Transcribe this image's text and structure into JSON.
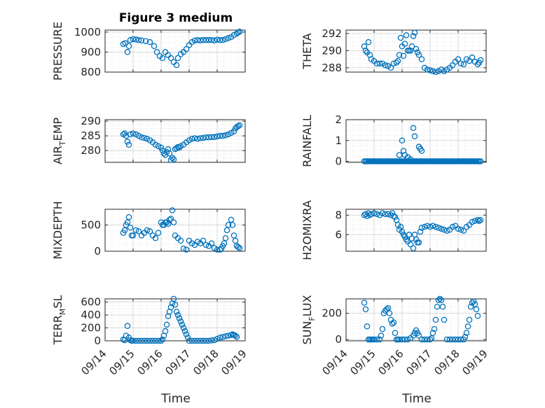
{
  "title": "Figure 3 medium",
  "xlabel": "Time",
  "colors": {
    "marker": "#0072BD",
    "axis": "#262626",
    "grid": "#d0d0d0"
  },
  "chart_data": [
    {
      "type": "scatter",
      "ylabel": "PRESSURE",
      "yticks": [
        "800",
        "900",
        "1000"
      ],
      "ytick_values": [
        800,
        900,
        1000
      ],
      "ylim": [
        800,
        1010
      ],
      "xlim": [
        0,
        5
      ],
      "grid": true,
      "minor_grid": true,
      "x": [
        0.65,
        0.72,
        0.8,
        0.85,
        0.9,
        1.0,
        1.1,
        1.2,
        1.3,
        1.45,
        1.6,
        1.75,
        1.85,
        1.95,
        2.05,
        2.15,
        2.25,
        2.35,
        2.45,
        2.55,
        2.6,
        2.7,
        2.8,
        2.9,
        3.0,
        3.1,
        3.2,
        3.3,
        3.4,
        3.5,
        3.6,
        3.7,
        3.8,
        3.9,
        4.0,
        4.1,
        4.2,
        4.3,
        4.4,
        4.5,
        4.6,
        4.7,
        4.75,
        4.8
      ],
      "y": [
        940,
        945,
        900,
        930,
        960,
        965,
        963,
        960,
        958,
        955,
        950,
        930,
        900,
        880,
        870,
        900,
        885,
        870,
        850,
        835,
        870,
        890,
        900,
        915,
        935,
        950,
        958,
        960,
        958,
        960,
        960,
        960,
        960,
        958,
        962,
        960,
        960,
        965,
        970,
        975,
        985,
        993,
        998,
        1002
      ]
    },
    {
      "type": "scatter",
      "ylabel": "THETA",
      "yticks": [
        "288",
        "290",
        "292"
      ],
      "ytick_values": [
        288,
        290,
        292
      ],
      "ylim": [
        287.5,
        292.4
      ],
      "xlim": [
        0,
        5
      ],
      "grid": true,
      "minor_grid": true,
      "x": [
        0.65,
        0.7,
        0.75,
        0.8,
        0.85,
        0.9,
        1.0,
        1.1,
        1.2,
        1.3,
        1.4,
        1.5,
        1.6,
        1.7,
        1.8,
        1.85,
        1.9,
        1.95,
        2.0,
        2.05,
        2.1,
        2.15,
        2.2,
        2.25,
        2.3,
        2.35,
        2.4,
        2.45,
        2.5,
        2.55,
        2.6,
        2.7,
        2.8,
        2.9,
        3.0,
        3.1,
        3.2,
        3.3,
        3.4,
        3.5,
        3.6,
        3.7,
        3.8,
        3.9,
        4.0,
        4.1,
        4.2,
        4.3,
        4.4,
        4.5,
        4.6,
        4.7,
        4.75,
        4.8
      ],
      "y": [
        290.5,
        290,
        289.8,
        291,
        289.5,
        289,
        288.8,
        288.5,
        288.5,
        288.5,
        288.3,
        288.2,
        288,
        288.5,
        288.6,
        288.8,
        289.5,
        291.5,
        290.5,
        289.4,
        290.8,
        291.8,
        290,
        290,
        290,
        290.5,
        291.7,
        292.1,
        290.2,
        289.8,
        289.5,
        289,
        288,
        287.8,
        287.7,
        287.6,
        287.5,
        287.6,
        287.8,
        287.6,
        287.8,
        288,
        288.3,
        288.7,
        289,
        288.5,
        288.4,
        289,
        288.8,
        289.2,
        288.7,
        288.4,
        288.6,
        288.9
      ]
    },
    {
      "type": "scatter",
      "ylabel": "AIR_TEMP",
      "ylabel_main": "AIR",
      "ylabel_sub": "T",
      "ylabel_rest": "EMP",
      "yticks": [
        "280",
        "285",
        "290"
      ],
      "ytick_values": [
        280,
        285,
        290
      ],
      "ylim": [
        276,
        290.5
      ],
      "xlim": [
        0,
        5
      ],
      "grid": true,
      "minor_grid": true,
      "x": [
        0.65,
        0.7,
        0.75,
        0.8,
        0.85,
        0.9,
        1.0,
        1.1,
        1.2,
        1.3,
        1.4,
        1.5,
        1.6,
        1.7,
        1.8,
        1.9,
        2.0,
        2.05,
        2.1,
        2.15,
        2.2,
        2.25,
        2.3,
        2.35,
        2.4,
        2.45,
        2.5,
        2.55,
        2.6,
        2.65,
        2.7,
        2.8,
        2.9,
        3.0,
        3.1,
        3.2,
        3.3,
        3.4,
        3.5,
        3.6,
        3.7,
        3.8,
        3.9,
        4.0,
        4.1,
        4.2,
        4.3,
        4.4,
        4.5,
        4.6,
        4.65,
        4.7,
        4.75,
        4.8
      ],
      "y": [
        285.5,
        285.8,
        285,
        283,
        282,
        285.5,
        285.8,
        285.5,
        285,
        284.5,
        284.3,
        284,
        283.5,
        282.8,
        282,
        281.5,
        281,
        280,
        279,
        278.5,
        279.5,
        280.5,
        279,
        276.8,
        277.5,
        277,
        280.5,
        280.8,
        281.2,
        281,
        281.5,
        282,
        282.8,
        283.5,
        284,
        284.2,
        284,
        284.2,
        284.3,
        284.5,
        284.5,
        284.6,
        284.6,
        284.8,
        285,
        285,
        285.2,
        285.5,
        286,
        286.5,
        287.5,
        288,
        288.3,
        288.6
      ]
    },
    {
      "type": "scatter",
      "ylabel": "RAINFALL",
      "yticks": [
        "0",
        "1",
        "2"
      ],
      "ytick_values": [
        0,
        1,
        2
      ],
      "ylim": [
        -0.05,
        2
      ],
      "xlim": [
        0,
        5
      ],
      "grid": true,
      "minor_grid": true,
      "x": [
        0.65,
        0.7,
        0.75,
        0.8,
        0.85,
        0.9,
        0.95,
        1.0,
        1.05,
        1.1,
        1.15,
        1.2,
        1.25,
        1.3,
        1.35,
        1.4,
        1.45,
        1.5,
        1.55,
        1.6,
        1.65,
        1.7,
        1.75,
        1.8,
        1.85,
        1.9,
        1.95,
        2.0,
        2.05,
        2.1,
        2.15,
        2.2,
        2.25,
        2.3,
        2.35,
        2.4,
        2.45,
        2.5,
        2.55,
        2.6,
        2.65,
        2.7,
        2.75,
        2.8,
        2.85,
        2.9,
        2.95,
        3.0,
        3.05,
        3.1,
        3.15,
        3.2,
        3.25,
        3.3,
        3.35,
        3.4,
        3.45,
        3.5,
        3.55,
        3.6,
        3.65,
        3.7,
        3.75,
        3.8,
        3.85,
        3.9,
        3.95,
        4.0,
        4.05,
        4.1,
        4.15,
        4.2,
        4.25,
        4.3,
        4.35,
        4.4,
        4.45,
        4.5,
        4.55,
        4.6,
        4.65,
        4.7,
        4.75,
        4.8,
        1.9,
        2.0,
        2.05,
        2.1,
        2.2,
        2.3,
        2.4,
        2.45,
        2.6,
        2.65,
        2.7
      ],
      "y": [
        0,
        0,
        0,
        0,
        0,
        0,
        0,
        0,
        0,
        0,
        0,
        0,
        0,
        0,
        0,
        0,
        0,
        0,
        0,
        0,
        0,
        0,
        0,
        0,
        0,
        0,
        0,
        0,
        0,
        0,
        0,
        0,
        0,
        0,
        0,
        0,
        0,
        0,
        0,
        0,
        0,
        0,
        0,
        0,
        0,
        0,
        0,
        0,
        0,
        0,
        0,
        0,
        0,
        0,
        0,
        0,
        0,
        0,
        0,
        0,
        0,
        0,
        0,
        0,
        0,
        0,
        0,
        0,
        0,
        0,
        0,
        0,
        0,
        0,
        0,
        0,
        0,
        0,
        0,
        0,
        0,
        0,
        0,
        0,
        0.3,
        1.0,
        0.5,
        0.3,
        0.2,
        0.1,
        1.6,
        1.2,
        0.7,
        0.6,
        0.5
      ]
    },
    {
      "type": "scatter",
      "ylabel": "MIXDEPTH",
      "yticks": [
        "0",
        "500"
      ],
      "ytick_values": [
        0,
        500
      ],
      "ylim": [
        0,
        800
      ],
      "xlim": [
        0,
        5
      ],
      "grid": true,
      "minor_grid": true,
      "x": [
        0.65,
        0.7,
        0.75,
        0.8,
        0.85,
        0.9,
        0.95,
        1.0,
        1.1,
        1.2,
        1.3,
        1.4,
        1.5,
        1.6,
        1.7,
        1.8,
        1.9,
        2.0,
        2.05,
        2.1,
        2.15,
        2.2,
        2.25,
        2.3,
        2.35,
        2.4,
        2.45,
        2.5,
        2.6,
        2.7,
        2.8,
        2.9,
        3.0,
        3.1,
        3.2,
        3.3,
        3.4,
        3.5,
        3.6,
        3.7,
        3.8,
        3.9,
        4.0,
        4.1,
        4.15,
        4.2,
        4.25,
        4.3,
        4.35,
        4.4,
        4.5,
        4.55,
        4.6,
        4.65,
        4.7,
        4.75,
        4.8
      ],
      "y": [
        350,
        400,
        500,
        550,
        650,
        450,
        300,
        300,
        400,
        380,
        300,
        350,
        400,
        380,
        300,
        250,
        350,
        550,
        500,
        500,
        550,
        550,
        520,
        600,
        620,
        780,
        550,
        300,
        250,
        200,
        50,
        30,
        200,
        150,
        120,
        180,
        150,
        200,
        120,
        100,
        150,
        60,
        30,
        30,
        50,
        100,
        150,
        250,
        400,
        500,
        600,
        500,
        300,
        200,
        100,
        80,
        60
      ]
    },
    {
      "type": "scatter",
      "ylabel": "H2OMIXRA",
      "yticks": [
        "6",
        "8"
      ],
      "ytick_values": [
        6,
        8
      ],
      "ylim": [
        4.3,
        8.6
      ],
      "xlim": [
        0,
        5
      ],
      "grid": true,
      "minor_grid": true,
      "x": [
        0.65,
        0.7,
        0.75,
        0.8,
        0.85,
        0.9,
        1.0,
        1.1,
        1.2,
        1.3,
        1.4,
        1.5,
        1.6,
        1.65,
        1.7,
        1.75,
        1.8,
        1.85,
        1.9,
        1.95,
        2.0,
        2.05,
        2.1,
        2.15,
        2.2,
        2.25,
        2.3,
        2.35,
        2.4,
        2.45,
        2.5,
        2.55,
        2.6,
        2.65,
        2.7,
        2.8,
        2.9,
        3.0,
        3.1,
        3.2,
        3.3,
        3.4,
        3.5,
        3.6,
        3.7,
        3.8,
        3.9,
        4.0,
        4.1,
        4.2,
        4.3,
        4.4,
        4.5,
        4.6,
        4.7,
        4.75,
        4.8
      ],
      "y": [
        8.0,
        8.1,
        7.9,
        8.2,
        8.0,
        8.1,
        8.2,
        8.1,
        8.0,
        8.2,
        8.1,
        8.1,
        8.0,
        8.2,
        7.9,
        7.8,
        7.5,
        7.0,
        6.5,
        6.8,
        6.3,
        6.0,
        5.8,
        5.5,
        5.3,
        6.0,
        5.0,
        5.6,
        4.6,
        6.0,
        5.5,
        5.2,
        5.2,
        6.3,
        6.7,
        6.8,
        6.9,
        6.8,
        6.9,
        6.8,
        6.7,
        6.6,
        6.5,
        6.4,
        6.5,
        6.8,
        6.9,
        6.6,
        6.5,
        6.4,
        6.8,
        7.0,
        7.3,
        7.4,
        7.5,
        7.4,
        7.5
      ]
    },
    {
      "type": "scatter",
      "ylabel": "TERR_MSL",
      "ylabel_main": "TERR",
      "ylabel_sub": "M",
      "ylabel_rest": "SL",
      "yticks": [
        "0",
        "200",
        "400",
        "600"
      ],
      "ytick_values": [
        0,
        200,
        400,
        600
      ],
      "ylim": [
        0,
        650
      ],
      "xlim": [
        0,
        5
      ],
      "grid": true,
      "minor_grid": true,
      "x": [
        0.65,
        0.7,
        0.75,
        0.8,
        0.85,
        0.9,
        0.95,
        1.0,
        1.1,
        1.2,
        1.3,
        1.4,
        1.5,
        1.6,
        1.7,
        1.8,
        1.9,
        2.0,
        2.05,
        2.1,
        2.15,
        2.2,
        2.25,
        2.3,
        2.35,
        2.4,
        2.45,
        2.5,
        2.55,
        2.6,
        2.65,
        2.7,
        2.75,
        2.8,
        2.85,
        2.9,
        2.95,
        3.0,
        3.1,
        3.2,
        3.3,
        3.4,
        3.5,
        3.6,
        3.7,
        3.8,
        3.9,
        4.0,
        4.1,
        4.2,
        4.3,
        4.4,
        4.5,
        4.55,
        4.6,
        4.65,
        4.7
      ],
      "y": [
        20,
        10,
        80,
        230,
        50,
        10,
        0,
        0,
        0,
        0,
        0,
        0,
        0,
        0,
        0,
        0,
        0,
        0,
        20,
        80,
        150,
        250,
        380,
        450,
        520,
        580,
        650,
        560,
        450,
        400,
        350,
        300,
        250,
        200,
        150,
        100,
        50,
        0,
        0,
        0,
        0,
        0,
        0,
        0,
        0,
        5,
        10,
        30,
        50,
        60,
        70,
        80,
        90,
        100,
        90,
        80,
        60
      ]
    },
    {
      "type": "scatter",
      "ylabel": "SUN_FLUX",
      "ylabel_main": "SUN",
      "ylabel_sub": "F",
      "ylabel_rest": "LUX",
      "yticks": [
        "0",
        "200"
      ],
      "ytick_values": [
        0,
        200
      ],
      "ylim": [
        -10,
        310
      ],
      "xlim": [
        0,
        5
      ],
      "grid": true,
      "minor_grid": true,
      "x": [
        0.65,
        0.7,
        0.75,
        0.8,
        0.85,
        0.9,
        0.95,
        1.0,
        1.1,
        1.2,
        1.25,
        1.3,
        1.35,
        1.4,
        1.45,
        1.5,
        1.55,
        1.6,
        1.65,
        1.7,
        1.75,
        1.8,
        1.85,
        1.9,
        2.0,
        2.1,
        2.2,
        2.3,
        2.4,
        2.45,
        2.5,
        2.55,
        2.6,
        2.7,
        2.8,
        2.9,
        3.0,
        3.05,
        3.1,
        3.15,
        3.2,
        3.25,
        3.3,
        3.35,
        3.4,
        3.45,
        3.5,
        3.6,
        3.7,
        3.8,
        3.9,
        4.0,
        4.1,
        4.2,
        4.25,
        4.3,
        4.35,
        4.4,
        4.45,
        4.5,
        4.55,
        4.6,
        4.65,
        4.7
      ],
      "y": [
        280,
        230,
        100,
        0,
        0,
        0,
        0,
        0,
        0,
        0,
        30,
        80,
        200,
        220,
        230,
        240,
        200,
        150,
        120,
        130,
        50,
        0,
        0,
        0,
        0,
        0,
        0,
        10,
        30,
        50,
        70,
        50,
        30,
        0,
        0,
        0,
        0,
        10,
        50,
        80,
        150,
        250,
        300,
        310,
        300,
        250,
        150,
        0,
        0,
        0,
        0,
        0,
        0,
        0,
        20,
        50,
        100,
        150,
        250,
        280,
        290,
        270,
        230,
        180
      ]
    }
  ],
  "xticks": [
    "09/14",
    "09/15",
    "09/16",
    "09/17",
    "09/18",
    "09/19"
  ]
}
